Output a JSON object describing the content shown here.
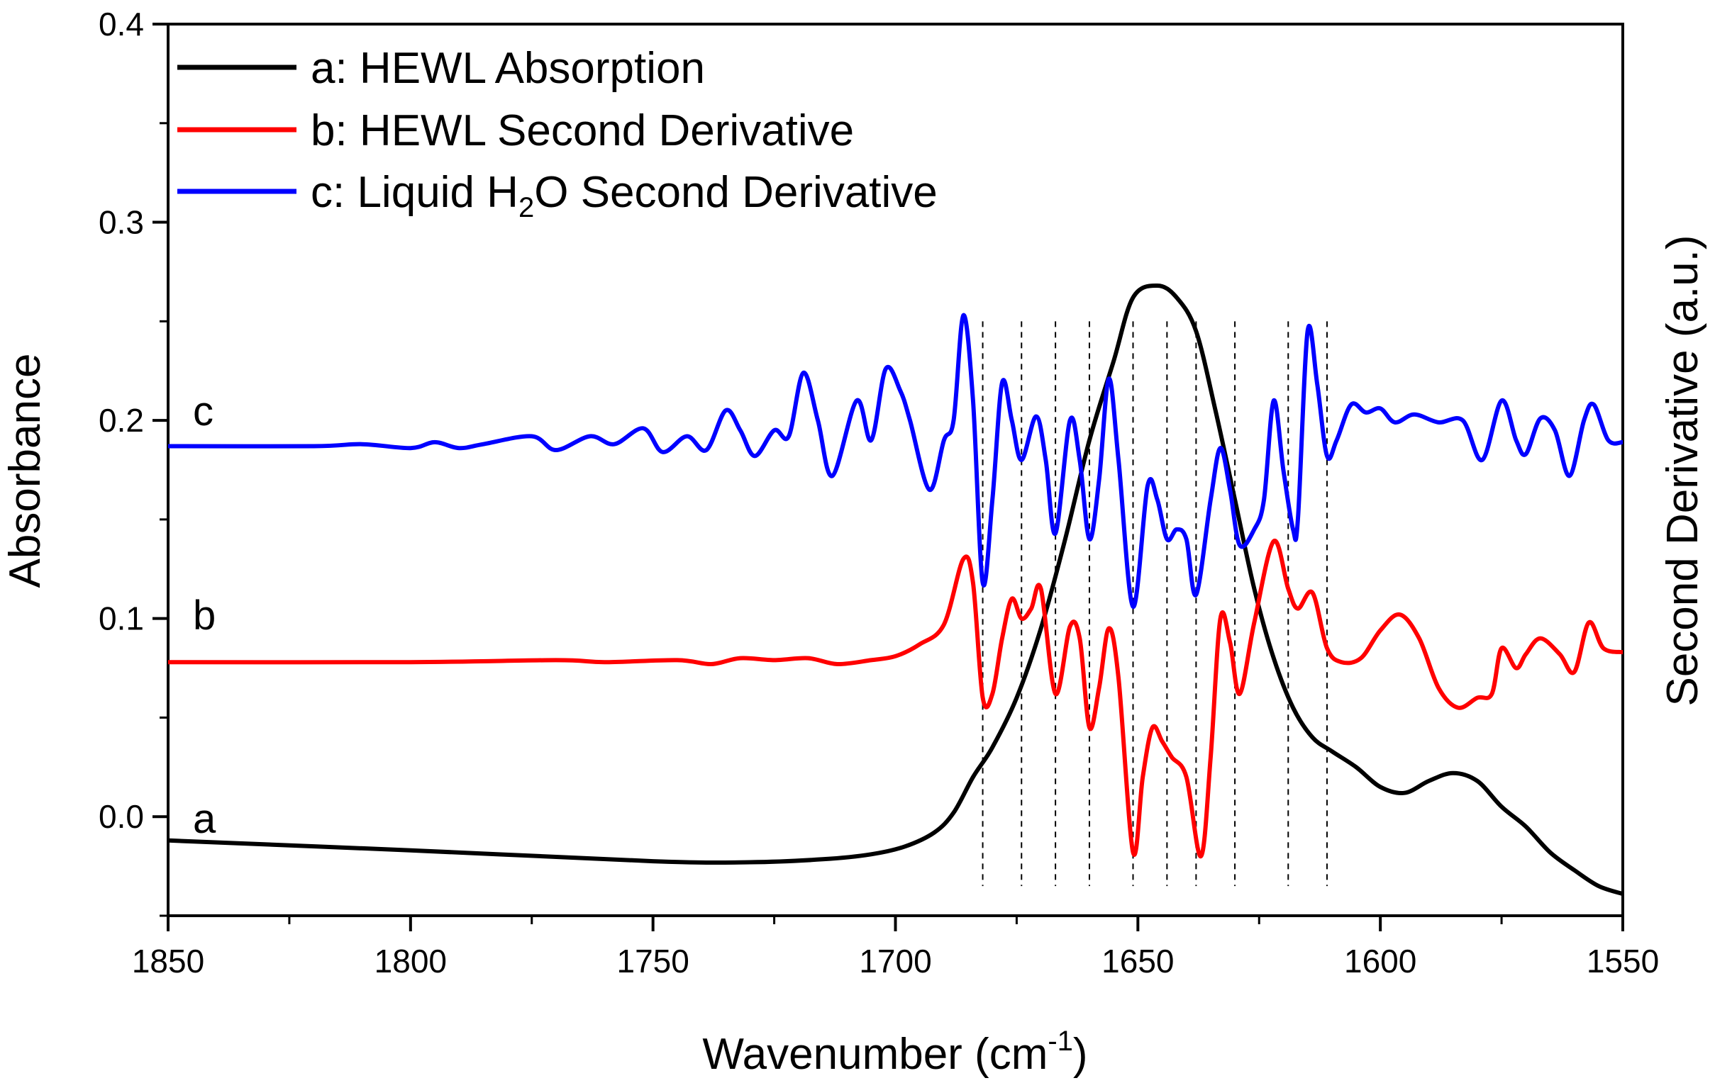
{
  "chart_data": {
    "type": "line",
    "title": "",
    "xlabel": "Wavenumber (cm",
    "xlabel_sup": "-1",
    "xlabel_close": ")",
    "ylabel_left": "Absorbance",
    "ylabel_right": "Second Derivative (a.u.)",
    "xlim": [
      1850,
      1550
    ],
    "ylim": [
      -0.05,
      0.4
    ],
    "x_ticks": [
      1850,
      1800,
      1750,
      1700,
      1650,
      1600,
      1550
    ],
    "x_tick_labels": [
      "1850",
      "1800",
      "1750",
      "1700",
      "1650",
      "1600",
      "1550"
    ],
    "y_ticks": [
      0.0,
      0.1,
      0.2,
      0.3,
      0.4
    ],
    "y_tick_labels": [
      "0.0",
      "0.1",
      "0.2",
      "0.3",
      "0.4"
    ],
    "legend_position": "top-left",
    "dashed_lines_x": [
      1682,
      1674,
      1667,
      1660,
      1651,
      1644,
      1638,
      1630,
      1619,
      1611
    ],
    "curve_labels": [
      {
        "text": "a",
        "series": "a"
      },
      {
        "text": "b",
        "series": "b"
      },
      {
        "text": "c",
        "series": "c"
      }
    ],
    "series": [
      {
        "id": "a",
        "name": "a: HEWL Absorption",
        "color": "#000000",
        "points": [
          [
            1850,
            -0.012
          ],
          [
            1800,
            -0.017
          ],
          [
            1750,
            -0.0225
          ],
          [
            1730,
            -0.023
          ],
          [
            1715,
            -0.0215
          ],
          [
            1705,
            -0.019
          ],
          [
            1698,
            -0.015
          ],
          [
            1692,
            -0.008
          ],
          [
            1688,
            0.002
          ],
          [
            1684,
            0.02
          ],
          [
            1680,
            0.035
          ],
          [
            1675,
            0.06
          ],
          [
            1670,
            0.095
          ],
          [
            1665,
            0.14
          ],
          [
            1660,
            0.19
          ],
          [
            1655,
            0.23
          ],
          [
            1651,
            0.262
          ],
          [
            1646,
            0.268
          ],
          [
            1642,
            0.262
          ],
          [
            1638,
            0.245
          ],
          [
            1634,
            0.205
          ],
          [
            1630,
            0.16
          ],
          [
            1626,
            0.115
          ],
          [
            1622,
            0.08
          ],
          [
            1618,
            0.055
          ],
          [
            1614,
            0.04
          ],
          [
            1610,
            0.033
          ],
          [
            1605,
            0.025
          ],
          [
            1600,
            0.015
          ],
          [
            1595,
            0.012
          ],
          [
            1590,
            0.018
          ],
          [
            1585,
            0.022
          ],
          [
            1580,
            0.018
          ],
          [
            1575,
            0.005
          ],
          [
            1570,
            -0.005
          ],
          [
            1565,
            -0.018
          ],
          [
            1560,
            -0.027
          ],
          [
            1555,
            -0.035
          ],
          [
            1550,
            -0.039
          ]
        ]
      },
      {
        "id": "b",
        "name": "b: HEWL Second Derivative",
        "color": "#ff0000",
        "points": [
          [
            1850,
            0.078
          ],
          [
            1800,
            0.078
          ],
          [
            1770,
            0.079
          ],
          [
            1760,
            0.078
          ],
          [
            1745,
            0.079
          ],
          [
            1738,
            0.077
          ],
          [
            1732,
            0.08
          ],
          [
            1725,
            0.079
          ],
          [
            1718,
            0.08
          ],
          [
            1712,
            0.077
          ],
          [
            1705,
            0.079
          ],
          [
            1700,
            0.081
          ],
          [
            1695,
            0.087
          ],
          [
            1690,
            0.097
          ],
          [
            1686,
            0.13
          ],
          [
            1684,
            0.118
          ],
          [
            1682,
            0.06
          ],
          [
            1680,
            0.062
          ],
          [
            1678,
            0.09
          ],
          [
            1676,
            0.11
          ],
          [
            1674,
            0.1
          ],
          [
            1672,
            0.105
          ],
          [
            1670,
            0.115
          ],
          [
            1667,
            0.062
          ],
          [
            1664,
            0.096
          ],
          [
            1662,
            0.09
          ],
          [
            1660,
            0.045
          ],
          [
            1658,
            0.065
          ],
          [
            1656,
            0.095
          ],
          [
            1654,
            0.07
          ],
          [
            1651,
            -0.018
          ],
          [
            1649,
            0.02
          ],
          [
            1647,
            0.045
          ],
          [
            1645,
            0.038
          ],
          [
            1643,
            0.03
          ],
          [
            1640,
            0.02
          ],
          [
            1637,
            -0.02
          ],
          [
            1635,
            0.03
          ],
          [
            1633,
            0.1
          ],
          [
            1631,
            0.088
          ],
          [
            1629,
            0.062
          ],
          [
            1626,
            0.098
          ],
          [
            1622,
            0.139
          ],
          [
            1619,
            0.115
          ],
          [
            1617,
            0.105
          ],
          [
            1614,
            0.113
          ],
          [
            1611,
            0.085
          ],
          [
            1608,
            0.078
          ],
          [
            1604,
            0.08
          ],
          [
            1600,
            0.094
          ],
          [
            1596,
            0.102
          ],
          [
            1592,
            0.09
          ],
          [
            1588,
            0.065
          ],
          [
            1584,
            0.055
          ],
          [
            1580,
            0.06
          ],
          [
            1577,
            0.062
          ],
          [
            1575,
            0.085
          ],
          [
            1572,
            0.075
          ],
          [
            1570,
            0.082
          ],
          [
            1567,
            0.09
          ],
          [
            1563,
            0.082
          ],
          [
            1560,
            0.073
          ],
          [
            1557,
            0.098
          ],
          [
            1554,
            0.085
          ],
          [
            1550,
            0.083
          ]
        ]
      },
      {
        "id": "c",
        "name": "c: Liquid H2O Second Derivative",
        "name_prefix": "c: Liquid H",
        "name_sub": "2",
        "name_suffix": "O Second Derivative",
        "color": "#0000ff",
        "points": [
          [
            1850,
            0.187
          ],
          [
            1820,
            0.187
          ],
          [
            1810,
            0.188
          ],
          [
            1800,
            0.186
          ],
          [
            1795,
            0.189
          ],
          [
            1790,
            0.186
          ],
          [
            1785,
            0.188
          ],
          [
            1775,
            0.192
          ],
          [
            1770,
            0.185
          ],
          [
            1763,
            0.192
          ],
          [
            1758,
            0.188
          ],
          [
            1752,
            0.196
          ],
          [
            1748,
            0.184
          ],
          [
            1743,
            0.192
          ],
          [
            1739,
            0.185
          ],
          [
            1735,
            0.205
          ],
          [
            1732,
            0.195
          ],
          [
            1729,
            0.182
          ],
          [
            1725,
            0.195
          ],
          [
            1722,
            0.192
          ],
          [
            1719,
            0.224
          ],
          [
            1716,
            0.2
          ],
          [
            1713,
            0.172
          ],
          [
            1708,
            0.21
          ],
          [
            1705,
            0.19
          ],
          [
            1702,
            0.226
          ],
          [
            1699,
            0.215
          ],
          [
            1697,
            0.2
          ],
          [
            1693,
            0.165
          ],
          [
            1690,
            0.19
          ],
          [
            1688,
            0.2
          ],
          [
            1686,
            0.253
          ],
          [
            1684,
            0.21
          ],
          [
            1682,
            0.118
          ],
          [
            1680,
            0.16
          ],
          [
            1678,
            0.219
          ],
          [
            1676,
            0.2
          ],
          [
            1674,
            0.18
          ],
          [
            1671,
            0.202
          ],
          [
            1669,
            0.18
          ],
          [
            1667,
            0.143
          ],
          [
            1664,
            0.2
          ],
          [
            1662,
            0.18
          ],
          [
            1660,
            0.14
          ],
          [
            1658,
            0.17
          ],
          [
            1656,
            0.221
          ],
          [
            1654,
            0.18
          ],
          [
            1651,
            0.106
          ],
          [
            1648,
            0.167
          ],
          [
            1646,
            0.16
          ],
          [
            1644,
            0.14
          ],
          [
            1642,
            0.145
          ],
          [
            1640,
            0.14
          ],
          [
            1638,
            0.112
          ],
          [
            1635,
            0.16
          ],
          [
            1633,
            0.186
          ],
          [
            1631,
            0.165
          ],
          [
            1629,
            0.137
          ],
          [
            1626,
            0.145
          ],
          [
            1624,
            0.16
          ],
          [
            1622,
            0.21
          ],
          [
            1620,
            0.175
          ],
          [
            1618,
            0.145
          ],
          [
            1617,
            0.15
          ],
          [
            1615,
            0.245
          ],
          [
            1613,
            0.218
          ],
          [
            1611,
            0.182
          ],
          [
            1609,
            0.19
          ],
          [
            1606,
            0.208
          ],
          [
            1603,
            0.204
          ],
          [
            1600,
            0.206
          ],
          [
            1597,
            0.199
          ],
          [
            1593,
            0.203
          ],
          [
            1588,
            0.199
          ],
          [
            1583,
            0.2
          ],
          [
            1579,
            0.18
          ],
          [
            1575,
            0.21
          ],
          [
            1572,
            0.19
          ],
          [
            1570,
            0.183
          ],
          [
            1567,
            0.201
          ],
          [
            1564,
            0.195
          ],
          [
            1561,
            0.172
          ],
          [
            1558,
            0.2
          ],
          [
            1556,
            0.208
          ],
          [
            1553,
            0.19
          ],
          [
            1550,
            0.189
          ]
        ]
      }
    ]
  }
}
